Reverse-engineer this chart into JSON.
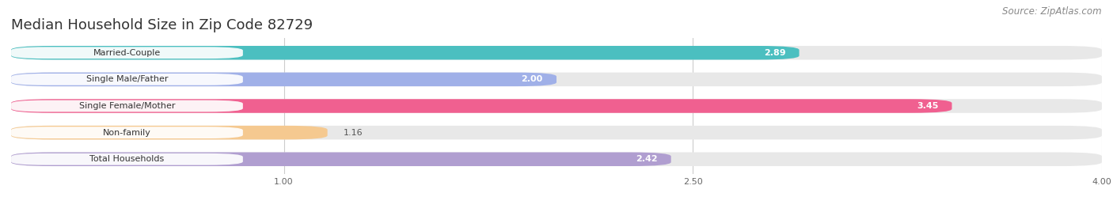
{
  "title": "Median Household Size in Zip Code 82729",
  "source": "Source: ZipAtlas.com",
  "categories": [
    "Married-Couple",
    "Single Male/Father",
    "Single Female/Mother",
    "Non-family",
    "Total Households"
  ],
  "values": [
    2.89,
    2.0,
    3.45,
    1.16,
    2.42
  ],
  "bar_colors": [
    "#4bbfc0",
    "#a0b0e8",
    "#f06090",
    "#f5c990",
    "#b09ed0"
  ],
  "bar_bg_color": "#e8e8e8",
  "value_white_threshold": 1.5,
  "xlim": [
    0.0,
    4.0
  ],
  "xticks": [
    1.0,
    2.5,
    4.0
  ],
  "xtick_labels": [
    "1.00",
    "2.50",
    "4.00"
  ],
  "bar_height": 0.52,
  "bar_gap": 0.18,
  "title_fontsize": 13,
  "label_fontsize": 8.0,
  "value_fontsize": 8.0,
  "source_fontsize": 8.5,
  "background_color": "#ffffff",
  "grid_color": "#cccccc"
}
